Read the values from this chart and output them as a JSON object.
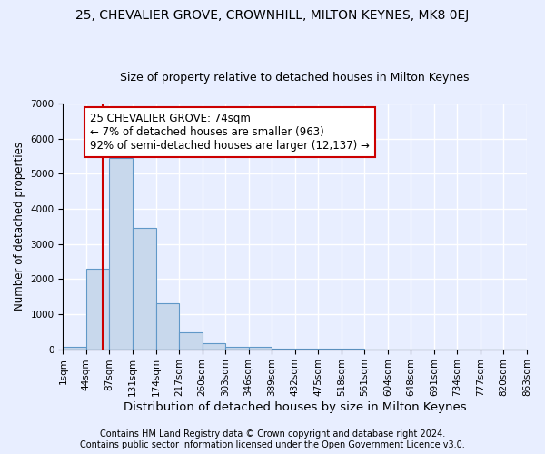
{
  "title1": "25, CHEVALIER GROVE, CROWNHILL, MILTON KEYNES, MK8 0EJ",
  "title2": "Size of property relative to detached houses in Milton Keynes",
  "xlabel": "Distribution of detached houses by size in Milton Keynes",
  "ylabel": "Number of detached properties",
  "bar_values": [
    75,
    2300,
    5450,
    3450,
    1320,
    475,
    160,
    80,
    55,
    20,
    10,
    5,
    3,
    2,
    1,
    1,
    0,
    0,
    0,
    0
  ],
  "bar_color": "#c8d8ec",
  "bar_edge_color": "#6098c8",
  "x_labels": [
    "1sqm",
    "44sqm",
    "87sqm",
    "131sqm",
    "174sqm",
    "217sqm",
    "260sqm",
    "303sqm",
    "346sqm",
    "389sqm",
    "432sqm",
    "475sqm",
    "518sqm",
    "561sqm",
    "604sqm",
    "648sqm",
    "691sqm",
    "734sqm",
    "777sqm",
    "820sqm",
    "863sqm"
  ],
  "ylim": [
    0,
    7000
  ],
  "yticks": [
    0,
    1000,
    2000,
    3000,
    4000,
    5000,
    6000,
    7000
  ],
  "annotation_text": "25 CHEVALIER GROVE: 74sqm\n← 7% of detached houses are smaller (963)\n92% of semi-detached houses are larger (12,137) →",
  "annotation_box_color": "#ffffff",
  "annotation_box_edge": "#cc0000",
  "footer1": "Contains HM Land Registry data © Crown copyright and database right 2024.",
  "footer2": "Contains public sector information licensed under the Open Government Licence v3.0.",
  "background_color": "#e8eeff",
  "grid_color": "#ffffff",
  "vline_color": "#cc0000",
  "title1_fontsize": 10,
  "title2_fontsize": 9,
  "xlabel_fontsize": 9.5,
  "ylabel_fontsize": 8.5,
  "tick_fontsize": 7.5,
  "annotation_fontsize": 8.5,
  "footer_fontsize": 7
}
